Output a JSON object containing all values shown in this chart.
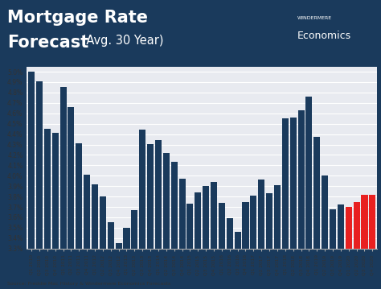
{
  "categories": [
    "Q1 2010",
    "Q2 2010",
    "Q3 2010",
    "Q4 2010",
    "Q1 2011",
    "Q2 2011",
    "Q3 2011",
    "Q4 2011",
    "Q1 2012",
    "Q2 2012",
    "Q3 2012",
    "Q4 2012",
    "Q1 2013",
    "Q2 2013",
    "Q3 2013",
    "Q4 2013",
    "Q1 2014",
    "Q2 2014",
    "Q3 2014",
    "Q4 2014",
    "Q1 2015",
    "Q2 2015",
    "Q3 2015",
    "Q4 2015",
    "Q1 2016",
    "Q2 2016",
    "Q3 2016",
    "Q4 2016",
    "Q1 2017",
    "Q2 2017",
    "Q3 2017",
    "Q4 2017",
    "Q1 2018",
    "Q2 2018",
    "Q3 2018",
    "Q4 2018",
    "Q1 2019",
    "Q2 2019",
    "Q3 2019",
    "Q4 2019",
    "Q1 2020",
    "Q2 2020",
    "Q3 2020",
    "Q4 2020"
  ],
  "values": [
    5.0,
    4.91,
    4.45,
    4.41,
    4.85,
    4.66,
    4.31,
    4.01,
    3.92,
    3.8,
    3.55,
    3.35,
    3.5,
    3.67,
    4.44,
    4.3,
    4.34,
    4.22,
    4.13,
    3.97,
    3.73,
    3.84,
    3.9,
    3.94,
    3.74,
    3.59,
    3.46,
    3.75,
    3.81,
    3.96,
    3.83,
    3.91,
    4.55,
    4.56,
    4.63,
    4.76,
    4.37,
    4.0,
    3.68,
    3.72,
    3.7,
    3.75,
    3.82,
    3.82
  ],
  "bar_colors": [
    "#1a3a5c",
    "#1a3a5c",
    "#1a3a5c",
    "#1a3a5c",
    "#1a3a5c",
    "#1a3a5c",
    "#1a3a5c",
    "#1a3a5c",
    "#1a3a5c",
    "#1a3a5c",
    "#1a3a5c",
    "#1a3a5c",
    "#1a3a5c",
    "#1a3a5c",
    "#1a3a5c",
    "#1a3a5c",
    "#1a3a5c",
    "#1a3a5c",
    "#1a3a5c",
    "#1a3a5c",
    "#1a3a5c",
    "#1a3a5c",
    "#1a3a5c",
    "#1a3a5c",
    "#1a3a5c",
    "#1a3a5c",
    "#1a3a5c",
    "#1a3a5c",
    "#1a3a5c",
    "#1a3a5c",
    "#1a3a5c",
    "#1a3a5c",
    "#1a3a5c",
    "#1a3a5c",
    "#1a3a5c",
    "#1a3a5c",
    "#1a3a5c",
    "#1a3a5c",
    "#1a3a5c",
    "#1a3a5c",
    "#e82020",
    "#e82020",
    "#e82020",
    "#e82020"
  ],
  "title_line1": "Mortgage Rate",
  "title_line2": "Forecast",
  "title_suffix": " (Avg. 30 Year)",
  "header_bg": "#1a3a5c",
  "chart_bg": "#e8eaf0",
  "ylim_min": 3.3,
  "ylim_max": 5.05,
  "yticks": [
    3.3,
    3.4,
    3.5,
    3.6,
    3.7,
    3.8,
    3.9,
    4.0,
    4.1,
    4.2,
    4.3,
    4.4,
    4.5,
    4.6,
    4.7,
    4.8,
    4.9,
    5.0
  ],
  "source_text": "Source: Freddie Mac History & Windermere Economics Forecasts",
  "logo_text": "WINDERMERE\nEconomics"
}
